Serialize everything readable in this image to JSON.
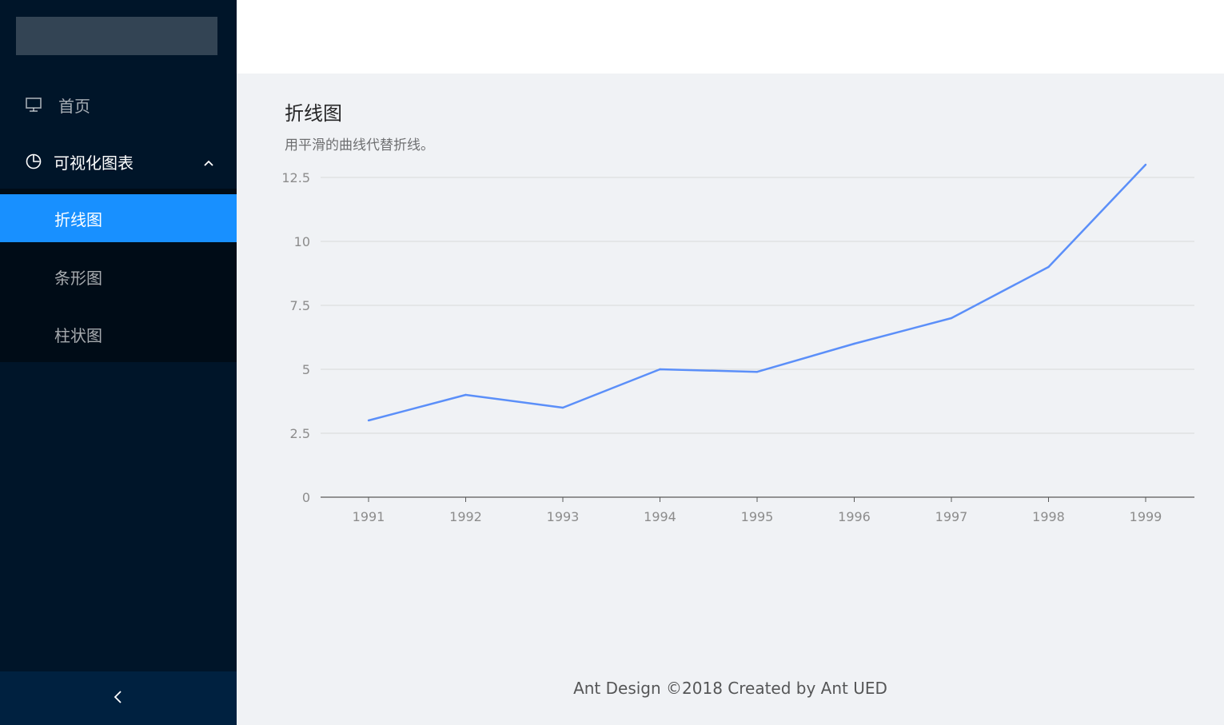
{
  "sidebar": {
    "home_label": "首页",
    "group_label": "可视化图表",
    "sub_items": [
      {
        "label": "折线图",
        "active": true
      },
      {
        "label": "条形图",
        "active": false
      },
      {
        "label": "柱状图",
        "active": false
      }
    ],
    "collapse_icon": "chevron-left-icon"
  },
  "page": {
    "title": "折线图",
    "description": "用平滑的曲线代替折线。"
  },
  "footer": {
    "text": "Ant Design ©2018 Created by Ant UED"
  },
  "colors": {
    "sidebar_bg": "#001529",
    "accent": "#1890ff",
    "line": "#5b8ff9"
  },
  "chart_data": {
    "type": "line",
    "x": [
      "1991",
      "1992",
      "1993",
      "1994",
      "1995",
      "1996",
      "1997",
      "1998",
      "1999"
    ],
    "series": [
      {
        "values": [
          3,
          4,
          3.5,
          5,
          4.9,
          6,
          7,
          9,
          13
        ]
      }
    ],
    "yticks": [
      "0",
      "2.5",
      "5",
      "7.5",
      "10",
      "12.5"
    ],
    "ylim": [
      0,
      12.5
    ],
    "grid": true
  }
}
